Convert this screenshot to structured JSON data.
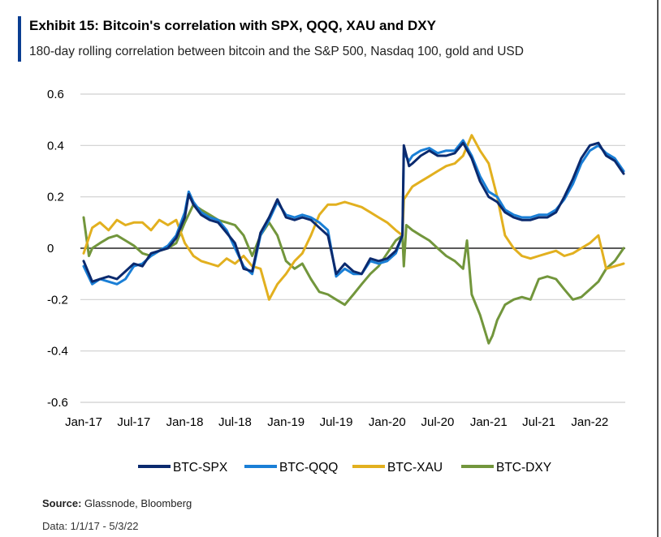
{
  "chart_data": {
    "type": "line",
    "title": "Exhibit 15: Bitcoin's correlation with SPX, QQQ, XAU and DXY",
    "subtitle": "180-day rolling correlation between bitcoin and the S&P 500, Nasdaq 100, gold and USD",
    "x_tick_labels": [
      "Jan-17",
      "Jul-17",
      "Jan-18",
      "Jul-18",
      "Jan-19",
      "Jul-19",
      "Jan-20",
      "Jul-20",
      "Jan-21",
      "Jul-21",
      "Jan-22"
    ],
    "y_tick_labels": [
      "0.6",
      "0.4",
      "0.2",
      "0",
      "-0.2",
      "-0.4",
      "-0.6"
    ],
    "xlim": [
      "2017-01-01",
      "2022-05-03"
    ],
    "ylim": [
      -0.6,
      0.6
    ],
    "grid": "horizontal",
    "legend_position": "bottom",
    "series": [
      {
        "name": "BTC-SPX",
        "color": "#0b2a6e",
        "points": [
          [
            "2017-01-01",
            -0.05
          ],
          [
            "2017-02-01",
            -0.13
          ],
          [
            "2017-03-01",
            -0.12
          ],
          [
            "2017-04-01",
            -0.11
          ],
          [
            "2017-05-01",
            -0.12
          ],
          [
            "2017-06-01",
            -0.09
          ],
          [
            "2017-07-01",
            -0.06
          ],
          [
            "2017-08-01",
            -0.07
          ],
          [
            "2017-09-01",
            -0.02
          ],
          [
            "2017-10-01",
            -0.01
          ],
          [
            "2017-11-01",
            0.0
          ],
          [
            "2017-12-01",
            0.04
          ],
          [
            "2018-01-01",
            0.12
          ],
          [
            "2018-01-15",
            0.21
          ],
          [
            "2018-02-01",
            0.17
          ],
          [
            "2018-03-01",
            0.13
          ],
          [
            "2018-04-01",
            0.11
          ],
          [
            "2018-05-01",
            0.1
          ],
          [
            "2018-06-01",
            0.06
          ],
          [
            "2018-07-01",
            0.02
          ],
          [
            "2018-08-01",
            -0.08
          ],
          [
            "2018-09-01",
            -0.09
          ],
          [
            "2018-10-01",
            0.06
          ],
          [
            "2018-11-01",
            0.12
          ],
          [
            "2018-12-01",
            0.19
          ],
          [
            "2019-01-01",
            0.12
          ],
          [
            "2019-02-01",
            0.11
          ],
          [
            "2019-03-01",
            0.12
          ],
          [
            "2019-04-01",
            0.11
          ],
          [
            "2019-05-01",
            0.08
          ],
          [
            "2019-06-01",
            0.05
          ],
          [
            "2019-07-01",
            -0.1
          ],
          [
            "2019-08-01",
            -0.06
          ],
          [
            "2019-09-01",
            -0.09
          ],
          [
            "2019-10-01",
            -0.1
          ],
          [
            "2019-11-01",
            -0.04
          ],
          [
            "2019-12-01",
            -0.05
          ],
          [
            "2020-01-01",
            -0.04
          ],
          [
            "2020-02-01",
            -0.01
          ],
          [
            "2020-02-25",
            0.05
          ],
          [
            "2020-03-01",
            0.4
          ],
          [
            "2020-03-20",
            0.32
          ],
          [
            "2020-04-01",
            0.33
          ],
          [
            "2020-05-01",
            0.36
          ],
          [
            "2020-06-01",
            0.38
          ],
          [
            "2020-07-01",
            0.36
          ],
          [
            "2020-08-01",
            0.36
          ],
          [
            "2020-09-01",
            0.37
          ],
          [
            "2020-10-01",
            0.41
          ],
          [
            "2020-11-01",
            0.35
          ],
          [
            "2020-12-01",
            0.26
          ],
          [
            "2021-01-01",
            0.2
          ],
          [
            "2021-02-01",
            0.18
          ],
          [
            "2021-03-01",
            0.14
          ],
          [
            "2021-04-01",
            0.12
          ],
          [
            "2021-05-01",
            0.11
          ],
          [
            "2021-06-01",
            0.11
          ],
          [
            "2021-07-01",
            0.12
          ],
          [
            "2021-08-01",
            0.12
          ],
          [
            "2021-09-01",
            0.14
          ],
          [
            "2021-10-01",
            0.2
          ],
          [
            "2021-11-01",
            0.27
          ],
          [
            "2021-12-01",
            0.35
          ],
          [
            "2022-01-01",
            0.4
          ],
          [
            "2022-02-01",
            0.41
          ],
          [
            "2022-03-01",
            0.36
          ],
          [
            "2022-04-01",
            0.34
          ],
          [
            "2022-05-03",
            0.29
          ]
        ]
      },
      {
        "name": "BTC-QQQ",
        "color": "#1a7fd6",
        "points": [
          [
            "2017-01-01",
            -0.07
          ],
          [
            "2017-02-01",
            -0.14
          ],
          [
            "2017-03-01",
            -0.12
          ],
          [
            "2017-04-01",
            -0.13
          ],
          [
            "2017-05-01",
            -0.14
          ],
          [
            "2017-06-01",
            -0.12
          ],
          [
            "2017-07-01",
            -0.07
          ],
          [
            "2017-08-01",
            -0.06
          ],
          [
            "2017-09-01",
            -0.03
          ],
          [
            "2017-10-01",
            -0.01
          ],
          [
            "2017-11-01",
            0.01
          ],
          [
            "2017-12-01",
            0.05
          ],
          [
            "2018-01-01",
            0.14
          ],
          [
            "2018-01-15",
            0.22
          ],
          [
            "2018-02-01",
            0.18
          ],
          [
            "2018-03-01",
            0.14
          ],
          [
            "2018-04-01",
            0.12
          ],
          [
            "2018-05-01",
            0.11
          ],
          [
            "2018-06-01",
            0.07
          ],
          [
            "2018-07-01",
            0.0
          ],
          [
            "2018-08-01",
            -0.07
          ],
          [
            "2018-09-01",
            -0.1
          ],
          [
            "2018-10-01",
            0.05
          ],
          [
            "2018-11-01",
            0.11
          ],
          [
            "2018-12-01",
            0.18
          ],
          [
            "2019-01-01",
            0.13
          ],
          [
            "2019-02-01",
            0.12
          ],
          [
            "2019-03-01",
            0.13
          ],
          [
            "2019-04-01",
            0.12
          ],
          [
            "2019-05-01",
            0.1
          ],
          [
            "2019-06-01",
            0.07
          ],
          [
            "2019-07-01",
            -0.11
          ],
          [
            "2019-08-01",
            -0.08
          ],
          [
            "2019-09-01",
            -0.1
          ],
          [
            "2019-10-01",
            -0.1
          ],
          [
            "2019-11-01",
            -0.05
          ],
          [
            "2019-12-01",
            -0.06
          ],
          [
            "2020-01-01",
            -0.05
          ],
          [
            "2020-02-01",
            -0.02
          ],
          [
            "2020-02-25",
            0.05
          ],
          [
            "2020-03-01",
            0.37
          ],
          [
            "2020-03-20",
            0.34
          ],
          [
            "2020-04-01",
            0.36
          ],
          [
            "2020-05-01",
            0.38
          ],
          [
            "2020-06-01",
            0.39
          ],
          [
            "2020-07-01",
            0.37
          ],
          [
            "2020-08-01",
            0.38
          ],
          [
            "2020-09-01",
            0.38
          ],
          [
            "2020-10-01",
            0.42
          ],
          [
            "2020-11-01",
            0.36
          ],
          [
            "2020-12-01",
            0.28
          ],
          [
            "2021-01-01",
            0.22
          ],
          [
            "2021-02-01",
            0.2
          ],
          [
            "2021-03-01",
            0.15
          ],
          [
            "2021-04-01",
            0.13
          ],
          [
            "2021-05-01",
            0.12
          ],
          [
            "2021-06-01",
            0.12
          ],
          [
            "2021-07-01",
            0.13
          ],
          [
            "2021-08-01",
            0.13
          ],
          [
            "2021-09-01",
            0.15
          ],
          [
            "2021-10-01",
            0.19
          ],
          [
            "2021-11-01",
            0.25
          ],
          [
            "2021-12-01",
            0.33
          ],
          [
            "2022-01-01",
            0.38
          ],
          [
            "2022-02-01",
            0.4
          ],
          [
            "2022-03-01",
            0.37
          ],
          [
            "2022-04-01",
            0.35
          ],
          [
            "2022-05-03",
            0.3
          ]
        ]
      },
      {
        "name": "BTC-XAU",
        "color": "#e2b01f",
        "points": [
          [
            "2017-01-01",
            -0.02
          ],
          [
            "2017-02-01",
            0.08
          ],
          [
            "2017-03-01",
            0.1
          ],
          [
            "2017-04-01",
            0.07
          ],
          [
            "2017-05-01",
            0.11
          ],
          [
            "2017-06-01",
            0.09
          ],
          [
            "2017-07-01",
            0.1
          ],
          [
            "2017-08-01",
            0.1
          ],
          [
            "2017-09-01",
            0.07
          ],
          [
            "2017-10-01",
            0.11
          ],
          [
            "2017-11-01",
            0.09
          ],
          [
            "2017-12-01",
            0.11
          ],
          [
            "2018-01-01",
            0.02
          ],
          [
            "2018-02-01",
            -0.03
          ],
          [
            "2018-03-01",
            -0.05
          ],
          [
            "2018-04-01",
            -0.06
          ],
          [
            "2018-05-01",
            -0.07
          ],
          [
            "2018-06-01",
            -0.04
          ],
          [
            "2018-07-01",
            -0.06
          ],
          [
            "2018-08-01",
            -0.03
          ],
          [
            "2018-09-01",
            -0.07
          ],
          [
            "2018-10-01",
            -0.08
          ],
          [
            "2018-11-01",
            -0.2
          ],
          [
            "2018-12-01",
            -0.14
          ],
          [
            "2019-01-01",
            -0.1
          ],
          [
            "2019-02-01",
            -0.05
          ],
          [
            "2019-03-01",
            -0.02
          ],
          [
            "2019-04-01",
            0.05
          ],
          [
            "2019-05-01",
            0.13
          ],
          [
            "2019-06-01",
            0.17
          ],
          [
            "2019-07-01",
            0.17
          ],
          [
            "2019-08-01",
            0.18
          ],
          [
            "2019-09-01",
            0.17
          ],
          [
            "2019-10-01",
            0.16
          ],
          [
            "2019-11-01",
            0.14
          ],
          [
            "2019-12-01",
            0.12
          ],
          [
            "2020-01-01",
            0.1
          ],
          [
            "2020-02-01",
            0.07
          ],
          [
            "2020-02-25",
            0.05
          ],
          [
            "2020-03-01",
            0.19
          ],
          [
            "2020-04-01",
            0.24
          ],
          [
            "2020-05-01",
            0.26
          ],
          [
            "2020-06-01",
            0.28
          ],
          [
            "2020-07-01",
            0.3
          ],
          [
            "2020-08-01",
            0.32
          ],
          [
            "2020-09-01",
            0.33
          ],
          [
            "2020-10-01",
            0.36
          ],
          [
            "2020-11-01",
            0.44
          ],
          [
            "2020-12-01",
            0.38
          ],
          [
            "2021-01-01",
            0.33
          ],
          [
            "2021-02-01",
            0.2
          ],
          [
            "2021-03-01",
            0.05
          ],
          [
            "2021-04-01",
            0.0
          ],
          [
            "2021-05-01",
            -0.03
          ],
          [
            "2021-06-01",
            -0.04
          ],
          [
            "2021-07-01",
            -0.03
          ],
          [
            "2021-08-01",
            -0.02
          ],
          [
            "2021-09-01",
            -0.01
          ],
          [
            "2021-10-01",
            -0.03
          ],
          [
            "2021-11-01",
            -0.02
          ],
          [
            "2021-12-01",
            0.0
          ],
          [
            "2022-01-01",
            0.02
          ],
          [
            "2022-02-01",
            0.05
          ],
          [
            "2022-03-01",
            -0.08
          ],
          [
            "2022-04-01",
            -0.07
          ],
          [
            "2022-05-03",
            -0.06
          ]
        ]
      },
      {
        "name": "BTC-DXY",
        "color": "#72963c",
        "points": [
          [
            "2017-01-01",
            0.12
          ],
          [
            "2017-01-20",
            -0.03
          ],
          [
            "2017-02-01",
            0.0
          ],
          [
            "2017-03-01",
            0.02
          ],
          [
            "2017-04-01",
            0.04
          ],
          [
            "2017-05-01",
            0.05
          ],
          [
            "2017-06-01",
            0.03
          ],
          [
            "2017-07-01",
            0.01
          ],
          [
            "2017-08-01",
            -0.02
          ],
          [
            "2017-09-01",
            -0.03
          ],
          [
            "2017-10-01",
            -0.01
          ],
          [
            "2017-11-01",
            0.0
          ],
          [
            "2017-12-01",
            0.02
          ],
          [
            "2018-01-01",
            0.1
          ],
          [
            "2018-02-01",
            0.17
          ],
          [
            "2018-03-01",
            0.15
          ],
          [
            "2018-04-01",
            0.13
          ],
          [
            "2018-05-01",
            0.11
          ],
          [
            "2018-06-01",
            0.1
          ],
          [
            "2018-07-01",
            0.09
          ],
          [
            "2018-08-01",
            0.05
          ],
          [
            "2018-09-01",
            -0.03
          ],
          [
            "2018-10-01",
            0.05
          ],
          [
            "2018-11-01",
            0.1
          ],
          [
            "2018-12-01",
            0.05
          ],
          [
            "2019-01-01",
            -0.05
          ],
          [
            "2019-02-01",
            -0.08
          ],
          [
            "2019-03-01",
            -0.06
          ],
          [
            "2019-04-01",
            -0.12
          ],
          [
            "2019-05-01",
            -0.17
          ],
          [
            "2019-06-01",
            -0.18
          ],
          [
            "2019-07-01",
            -0.2
          ],
          [
            "2019-08-01",
            -0.22
          ],
          [
            "2019-09-01",
            -0.18
          ],
          [
            "2019-10-01",
            -0.14
          ],
          [
            "2019-11-01",
            -0.1
          ],
          [
            "2019-12-01",
            -0.07
          ],
          [
            "2020-01-01",
            -0.02
          ],
          [
            "2020-02-01",
            0.03
          ],
          [
            "2020-02-25",
            0.05
          ],
          [
            "2020-03-01",
            -0.07
          ],
          [
            "2020-03-10",
            0.09
          ],
          [
            "2020-04-01",
            0.07
          ],
          [
            "2020-05-01",
            0.05
          ],
          [
            "2020-06-01",
            0.03
          ],
          [
            "2020-07-01",
            0.0
          ],
          [
            "2020-08-01",
            -0.03
          ],
          [
            "2020-09-01",
            -0.05
          ],
          [
            "2020-10-01",
            -0.08
          ],
          [
            "2020-10-15",
            0.03
          ],
          [
            "2020-11-01",
            -0.18
          ],
          [
            "2020-12-01",
            -0.26
          ],
          [
            "2021-01-01",
            -0.37
          ],
          [
            "2021-01-15",
            -0.34
          ],
          [
            "2021-02-01",
            -0.28
          ],
          [
            "2021-03-01",
            -0.22
          ],
          [
            "2021-04-01",
            -0.2
          ],
          [
            "2021-05-01",
            -0.19
          ],
          [
            "2021-06-01",
            -0.2
          ],
          [
            "2021-07-01",
            -0.12
          ],
          [
            "2021-08-01",
            -0.11
          ],
          [
            "2021-09-01",
            -0.12
          ],
          [
            "2021-10-01",
            -0.16
          ],
          [
            "2021-11-01",
            -0.2
          ],
          [
            "2021-12-01",
            -0.19
          ],
          [
            "2022-01-01",
            -0.16
          ],
          [
            "2022-02-01",
            -0.13
          ],
          [
            "2022-03-01",
            -0.08
          ],
          [
            "2022-04-01",
            -0.05
          ],
          [
            "2022-05-03",
            0.0
          ]
        ]
      }
    ]
  },
  "footer": {
    "source_label": "Source:",
    "source_text": " Glassnode, Bloomberg",
    "data_range": "Data: 1/1/17 - 5/3/22"
  }
}
